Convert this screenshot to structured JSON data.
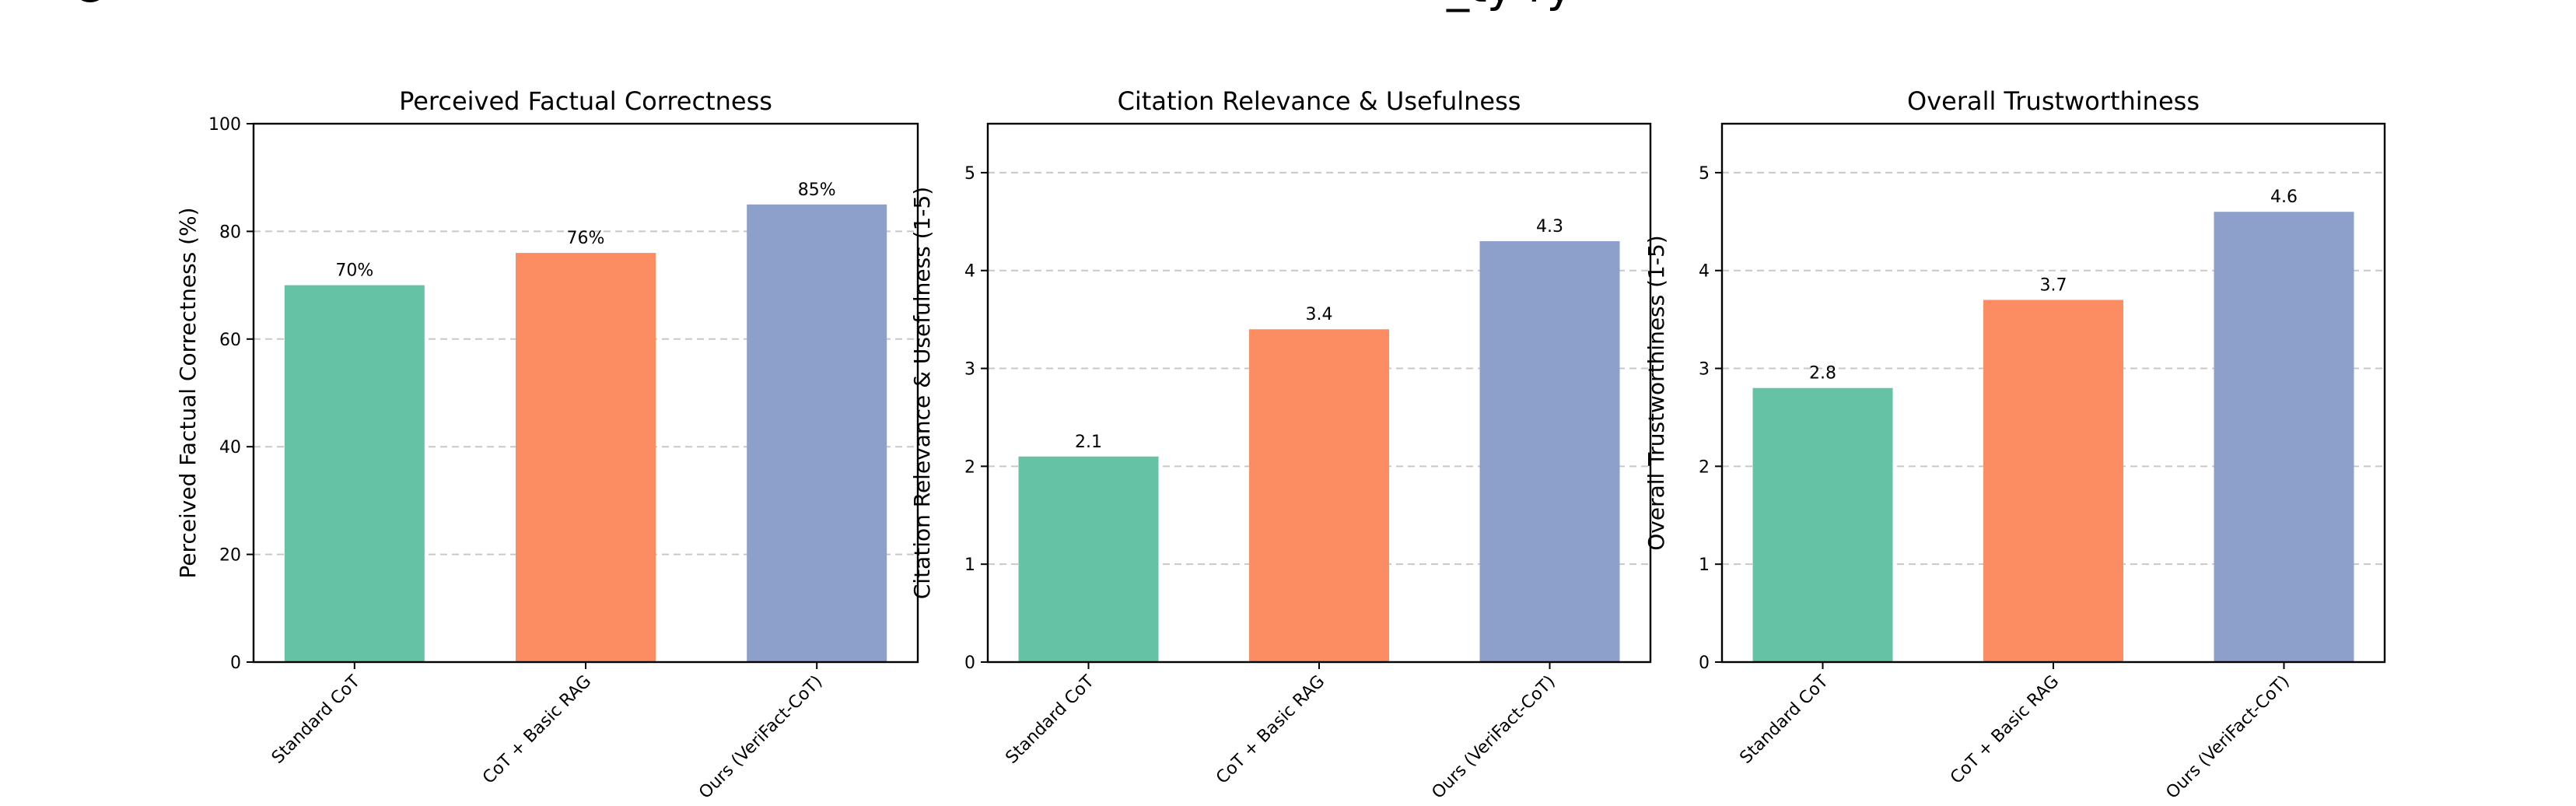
{
  "figure": {
    "clipped_top_text_left": "C",
    "clipped_top_text_right": "_ty ry"
  },
  "chart_data": [
    {
      "type": "bar",
      "title": "Perceived Factual Correctness",
      "xlabel": "",
      "ylabel": "Perceived Factual Correctness (%)",
      "categories": [
        "Standard CoT",
        "CoT + Basic RAG",
        "Ours (VeriFact-CoT)"
      ],
      "values": [
        70,
        76,
        85
      ],
      "value_labels": [
        "70%",
        "76%",
        "85%"
      ],
      "ylim": [
        0,
        100
      ],
      "yticks": [
        0,
        20,
        40,
        60,
        80,
        100
      ],
      "ytick_labels": [
        "0",
        "20",
        "40",
        "60",
        "80",
        "100"
      ],
      "grid": "y-dashed"
    },
    {
      "type": "bar",
      "title": "Citation Relevance & Usefulness",
      "xlabel": "",
      "ylabel": "Citation Relevance & Usefulness (1-5)",
      "categories": [
        "Standard CoT",
        "CoT + Basic RAG",
        "Ours (VeriFact-CoT)"
      ],
      "values": [
        2.1,
        3.4,
        4.3
      ],
      "value_labels": [
        "2.1",
        "3.4",
        "4.3"
      ],
      "ylim": [
        0,
        5.5
      ],
      "yticks": [
        0,
        1,
        2,
        3,
        4,
        5
      ],
      "ytick_labels": [
        "0",
        "1",
        "2",
        "3",
        "4",
        "5"
      ],
      "grid": "y-dashed"
    },
    {
      "type": "bar",
      "title": "Overall Trustworthiness",
      "xlabel": "",
      "ylabel": "Overall Trustworthiness (1-5)",
      "categories": [
        "Standard CoT",
        "CoT + Basic RAG",
        "Ours (VeriFact-CoT)"
      ],
      "values": [
        2.8,
        3.7,
        4.6
      ],
      "value_labels": [
        "2.8",
        "3.7",
        "4.6"
      ],
      "ylim": [
        0,
        5.5
      ],
      "yticks": [
        0,
        1,
        2,
        3,
        4,
        5
      ],
      "ytick_labels": [
        "0",
        "1",
        "2",
        "3",
        "4",
        "5"
      ],
      "grid": "y-dashed"
    }
  ],
  "colors": [
    "#66c2a5",
    "#fc8d62",
    "#8da0cb"
  ]
}
